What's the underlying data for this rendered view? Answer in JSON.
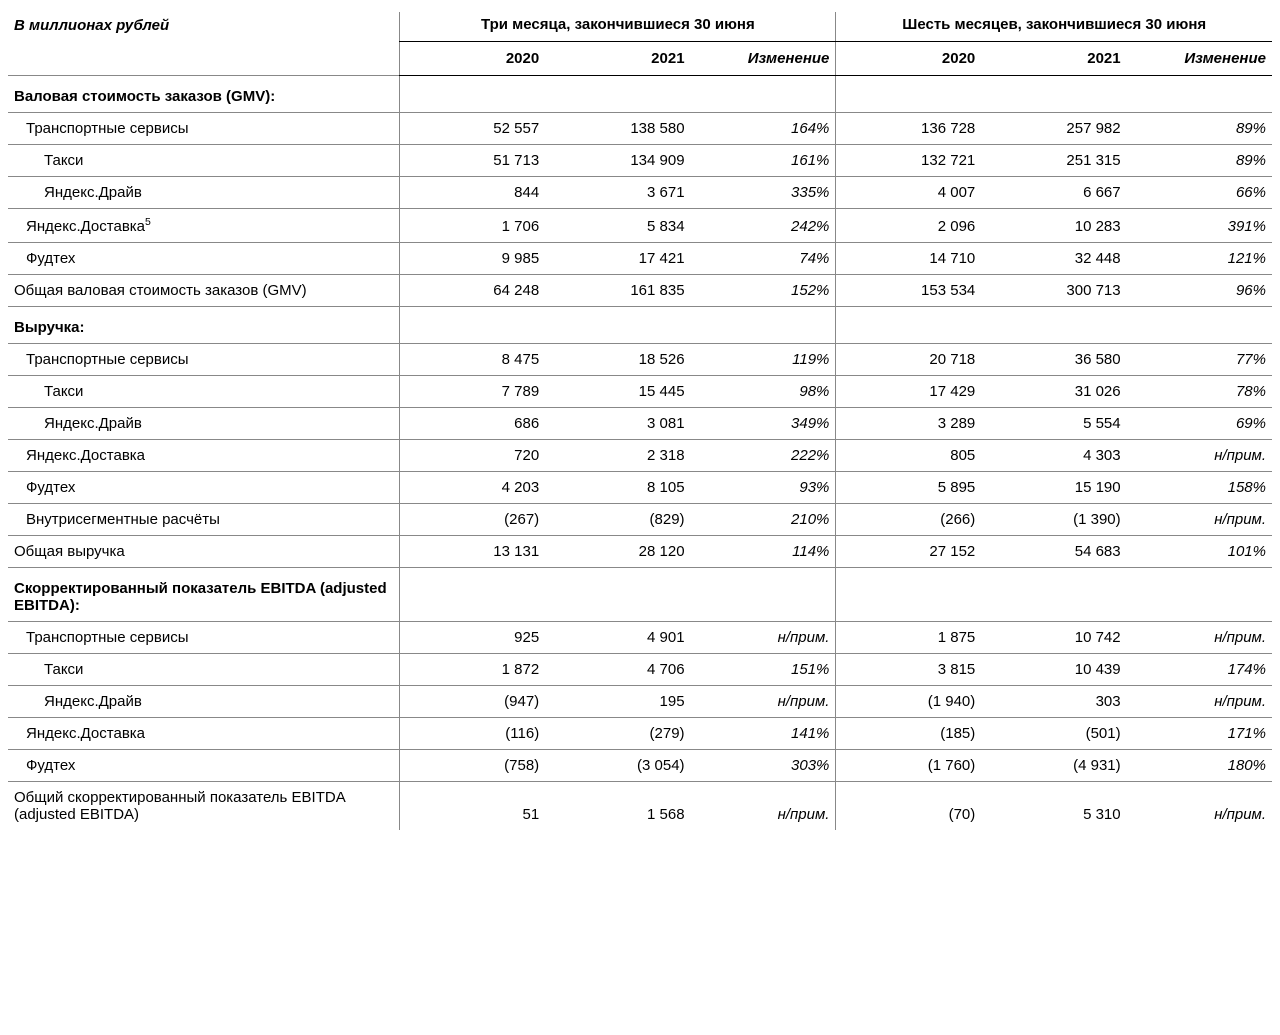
{
  "units_label": "В миллионах рублей",
  "period_headers": {
    "three_months": "Три месяца, закончившиеся 30 июня",
    "six_months": "Шесть месяцев, закончившиеся 30 июня"
  },
  "col_headers": {
    "y2020": "2020",
    "y2021": "2021",
    "change": "Изменение"
  },
  "styling": {
    "font_family": "Arial",
    "base_font_size_pt": 11,
    "text_color": "#000000",
    "background_color": "#ffffff",
    "grid_color": "#888888",
    "header_rule_color": "#000000",
    "italic_columns": [
      "change_3m",
      "change_6m"
    ],
    "column_widths_pct": [
      31,
      11.5,
      11.5,
      11.5,
      11.5,
      11.5,
      11.5
    ]
  },
  "sections": [
    {
      "title": "Валовая стоимость заказов (GMV):",
      "rows": [
        {
          "indent": 1,
          "label": "Транспортные сервисы",
          "q3_2020": "52 557",
          "q3_2021": "138 580",
          "q3_chg": "164%",
          "h6_2020": "136 728",
          "h6_2021": "257 982",
          "h6_chg": "89%"
        },
        {
          "indent": 2,
          "label": "Такси",
          "q3_2020": "51 713",
          "q3_2021": "134 909",
          "q3_chg": "161%",
          "h6_2020": "132 721",
          "h6_2021": "251 315",
          "h6_chg": "89%"
        },
        {
          "indent": 2,
          "label": "Яндекс.Драйв",
          "q3_2020": "844",
          "q3_2021": "3 671",
          "q3_chg": "335%",
          "h6_2020": "4 007",
          "h6_2021": "6 667",
          "h6_chg": "66%"
        },
        {
          "indent": 1,
          "label": "Яндекс.Доставка",
          "sup": "5",
          "q3_2020": "1 706",
          "q3_2021": "5 834",
          "q3_chg": "242%",
          "h6_2020": "2 096",
          "h6_2021": "10 283",
          "h6_chg": "391%"
        },
        {
          "indent": 1,
          "label": "Фудтех",
          "q3_2020": "9 985",
          "q3_2021": "17 421",
          "q3_chg": "74%",
          "h6_2020": "14 710",
          "h6_2021": "32 448",
          "h6_chg": "121%"
        }
      ],
      "total": {
        "label": "Общая валовая стоимость заказов (GMV)",
        "q3_2020": "64 248",
        "q3_2021": "161 835",
        "q3_chg": "152%",
        "h6_2020": "153 534",
        "h6_2021": "300 713",
        "h6_chg": "96%"
      }
    },
    {
      "title": "Выручка:",
      "rows": [
        {
          "indent": 1,
          "label": "Транспортные сервисы",
          "q3_2020": "8 475",
          "q3_2021": "18 526",
          "q3_chg": "119%",
          "h6_2020": "20 718",
          "h6_2021": "36 580",
          "h6_chg": "77%"
        },
        {
          "indent": 2,
          "label": "Такси",
          "q3_2020": "7 789",
          "q3_2021": "15 445",
          "q3_chg": "98%",
          "h6_2020": "17 429",
          "h6_2021": "31 026",
          "h6_chg": "78%"
        },
        {
          "indent": 2,
          "label": "Яндекс.Драйв",
          "q3_2020": "686",
          "q3_2021": "3 081",
          "q3_chg": "349%",
          "h6_2020": "3 289",
          "h6_2021": "5 554",
          "h6_chg": "69%"
        },
        {
          "indent": 1,
          "label": "Яндекс.Доставка",
          "q3_2020": "720",
          "q3_2021": "2 318",
          "q3_chg": "222%",
          "h6_2020": "805",
          "h6_2021": "4 303",
          "h6_chg": "н/прим."
        },
        {
          "indent": 1,
          "label": "Фудтех",
          "q3_2020": "4 203",
          "q3_2021": "8 105",
          "q3_chg": "93%",
          "h6_2020": "5 895",
          "h6_2021": "15 190",
          "h6_chg": "158%"
        },
        {
          "indent": 1,
          "label": "Внутрисегментные расчёты",
          "q3_2020": "(267)",
          "q3_2021": "(829)",
          "q3_chg": "210%",
          "h6_2020": "(266)",
          "h6_2021": "(1 390)",
          "h6_chg": "н/прим."
        }
      ],
      "total": {
        "label": "Общая выручка",
        "q3_2020": "13 131",
        "q3_2021": "28 120",
        "q3_chg": "114%",
        "h6_2020": "27 152",
        "h6_2021": "54 683",
        "h6_chg": "101%"
      }
    },
    {
      "title": "Скорректированный показатель EBITDA (adjusted EBITDA):",
      "rows": [
        {
          "indent": 1,
          "label": "Транспортные сервисы",
          "q3_2020": "925",
          "q3_2021": "4 901",
          "q3_chg": "н/прим.",
          "h6_2020": "1 875",
          "h6_2021": "10 742",
          "h6_chg": "н/прим."
        },
        {
          "indent": 2,
          "label": "Такси",
          "q3_2020": "1 872",
          "q3_2021": "4 706",
          "q3_chg": "151%",
          "h6_2020": "3 815",
          "h6_2021": "10 439",
          "h6_chg": "174%"
        },
        {
          "indent": 2,
          "label": "Яндекс.Драйв",
          "q3_2020": "(947)",
          "q3_2021": "195",
          "q3_chg": "н/прим.",
          "h6_2020": "(1 940)",
          "h6_2021": "303",
          "h6_chg": "н/прим."
        },
        {
          "indent": 1,
          "label": "Яндекс.Доставка",
          "q3_2020": "(116)",
          "q3_2021": "(279)",
          "q3_chg": "141%",
          "h6_2020": "(185)",
          "h6_2021": "(501)",
          "h6_chg": "171%"
        },
        {
          "indent": 1,
          "label": "Фудтех",
          "q3_2020": "(758)",
          "q3_2021": "(3 054)",
          "q3_chg": "303%",
          "h6_2020": "(1 760)",
          "h6_2021": "(4 931)",
          "h6_chg": "180%"
        }
      ],
      "total": {
        "label": "Общий скорректированный показатель EBITDA (adjusted EBITDA)",
        "q3_2020": "51",
        "q3_2021": "1 568",
        "q3_chg": "н/прим.",
        "h6_2020": "(70)",
        "h6_2021": "5 310",
        "h6_chg": "н/прим."
      }
    }
  ]
}
